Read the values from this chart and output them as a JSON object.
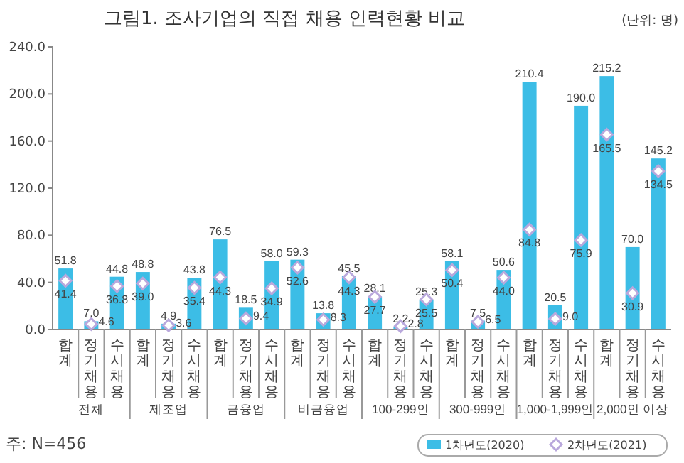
{
  "chart_data": {
    "type": "bar",
    "title": "그림1. 조사기업의 직접 채용 인력현황 비교",
    "categories": [
      "합계",
      "정기채용",
      "수시채용",
      "합계",
      "정기채용",
      "수시채용",
      "합계",
      "정기채용",
      "수시채용",
      "합계",
      "정기채용",
      "수시채용",
      "합계",
      "정기채용",
      "수시채용",
      "합계",
      "정기채용",
      "수시채용",
      "합계",
      "정기채용",
      "수시채용",
      "합계",
      "정기채용",
      "수시채용"
    ],
    "series": [
      {
        "name": "1차년도(2020)",
        "color": "#3cbde6",
        "values": [
          51.8,
          7.0,
          44.8,
          48.8,
          4.9,
          43.8,
          76.5,
          18.5,
          58.0,
          59.3,
          13.8,
          45.5,
          28.1,
          2.2,
          25.3,
          58.1,
          7.5,
          50.6,
          210.4,
          20.5,
          190.0,
          215.2,
          70.0,
          145.2
        ],
        "value_labels": [
          "51.8",
          "7.0",
          "44.8",
          "48.8",
          "4.9",
          "43.8",
          "76.5",
          "18.5",
          "58.0",
          "59.3",
          "13.8",
          "45.5",
          "28.1",
          "2.2",
          "25.3",
          "58.1",
          "7.5",
          "50.6",
          "210.4",
          "20.5",
          "190.0",
          "215.2",
          "70.0",
          "145.2"
        ]
      },
      {
        "name": "2차년도(2021)",
        "type": "scatter",
        "marker": "diamond",
        "color": "#b9a8dc",
        "values": [
          41.4,
          4.6,
          36.8,
          39.0,
          3.6,
          35.4,
          44.3,
          9.4,
          34.9,
          52.6,
          8.3,
          44.3,
          27.7,
          2.8,
          25.5,
          50.4,
          6.5,
          44.0,
          84.8,
          9.0,
          75.9,
          165.5,
          30.9,
          134.5
        ],
        "value_labels": [
          "41.4",
          "4.6",
          "36.8",
          "39.0",
          "3.6",
          "35.4",
          "44.3",
          "9.4",
          "34.9",
          "52.6",
          "8.3",
          "44.3",
          "27.7",
          "2.8",
          "25.5",
          "50.4",
          "6.5",
          "44.0",
          "84.8",
          "9.0",
          "75.9",
          "165.5",
          "30.9",
          "134.5"
        ]
      }
    ],
    "ylim": [
      0,
      240
    ],
    "yticks": [
      {
        "value": 0,
        "label": "0.0"
      },
      {
        "value": 40,
        "label": "40.0"
      },
      {
        "value": 80,
        "label": "80.0"
      },
      {
        "value": 120,
        "label": "120.0"
      },
      {
        "value": 160,
        "label": "160.0"
      },
      {
        "value": 200,
        "label": "200.0"
      },
      {
        "value": 240,
        "label": "240.0"
      }
    ],
    "grid": false,
    "legend": "bottom right",
    "annotations": [
      "(단위: 명)",
      "주: N=456",
      "전체",
      "제조업",
      "금융업",
      "비금융업",
      "100-299인",
      "300-999인",
      "1,000-1,999인",
      "2,000인 이상"
    ]
  }
}
